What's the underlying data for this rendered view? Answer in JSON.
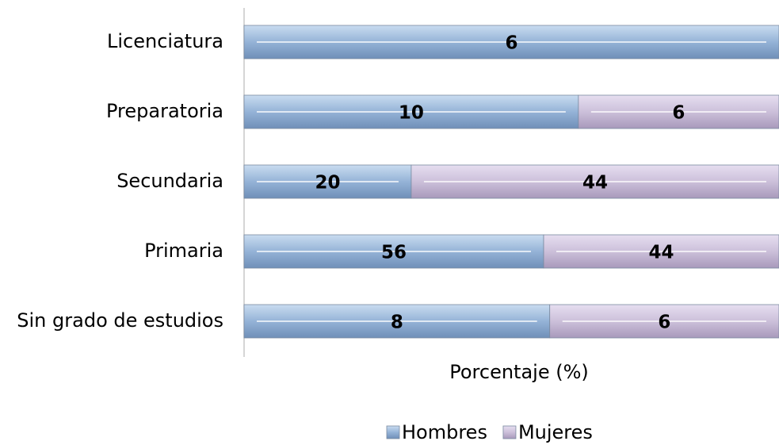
{
  "chart_data": {
    "type": "stacked_bar_100_horizontal",
    "categories": [
      "Licenciatura",
      "Preparatoria",
      "Secundaria",
      "Primaria",
      "Sin grado de estudios"
    ],
    "series": [
      {
        "name": "Hombres",
        "color": "#95b3d7",
        "values": [
          6,
          10,
          20,
          56,
          8
        ]
      },
      {
        "name": "Mujeres",
        "color": "#ccc0da",
        "values": [
          null,
          6,
          44,
          44,
          6
        ]
      }
    ],
    "xlabel": "Porcentaje (%)",
    "legend": "bottom"
  }
}
